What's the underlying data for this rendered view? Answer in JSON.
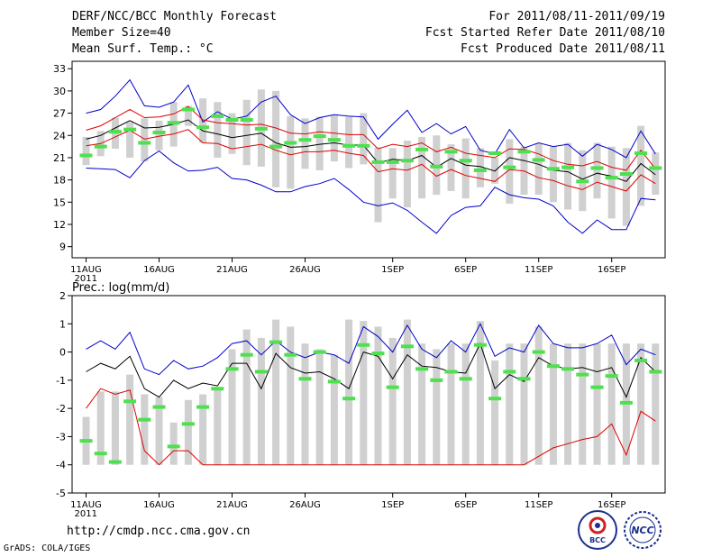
{
  "header": {
    "title": "DERF/NCC/BCC Monthly Forecast",
    "member_size": "Member Size=40",
    "variable": "Mean Surf. Temp.: °C",
    "period": "For 2011/08/11-2011/09/19",
    "started": "Fcst Started Refer Date 2011/08/10",
    "produced": "Fcst Produced Date 2011/08/11"
  },
  "footer": {
    "url": "http://cmdp.ncc.cma.gov.cn",
    "grads": "GrADS: COLA/IGES",
    "logo_bcc": "BCC",
    "logo_ncc": "NCC"
  },
  "colors": {
    "bar": "#d0d0d0",
    "median_mark": "#4ee04e",
    "mean_line": "#000000",
    "band_line": "#e00000",
    "extreme_line": "#0000cc"
  },
  "chart_data": [
    {
      "type": "bar",
      "title": "Mean Surf. Temp.: °C",
      "xlabel": "",
      "ylabel": "°C",
      "ylim": [
        7.5,
        34
      ],
      "yticks": [
        9,
        12,
        15,
        18,
        21,
        24,
        27,
        30,
        33
      ],
      "xticks": [
        {
          "day": 1,
          "label": "11AUG",
          "sub": "2011"
        },
        {
          "day": 6,
          "label": "16AUG"
        },
        {
          "day": 11,
          "label": "21AUG"
        },
        {
          "day": 16,
          "label": "26AUG"
        },
        {
          "day": 22,
          "label": "1SEP"
        },
        {
          "day": 27,
          "label": "6SEP"
        },
        {
          "day": 32,
          "label": "11SEP"
        },
        {
          "day": 37,
          "label": "16SEP"
        }
      ],
      "days": [
        1,
        2,
        3,
        4,
        5,
        6,
        7,
        8,
        9,
        10,
        11,
        12,
        13,
        14,
        15,
        16,
        17,
        18,
        19,
        20,
        21,
        22,
        23,
        24,
        25,
        26,
        27,
        28,
        29,
        30,
        31,
        32,
        33,
        34,
        35,
        36,
        37,
        38,
        39,
        40
      ],
      "bar_low": [
        20.0,
        21.2,
        22.2,
        21.0,
        20.5,
        22.0,
        22.5,
        25.3,
        23.0,
        21.0,
        21.5,
        20.0,
        19.8,
        17.0,
        16.8,
        19.5,
        19.3,
        20.5,
        19.6,
        20.1,
        12.3,
        15.5,
        14.3,
        15.5,
        16.0,
        16.5,
        15.5,
        17.0,
        17.5,
        14.8,
        16.0,
        16.0,
        15.0,
        14.0,
        13.8,
        15.5,
        12.8,
        11.8,
        14.5,
        16.0
      ],
      "bar_high": [
        23.8,
        24.6,
        26.4,
        25.8,
        26.3,
        26.0,
        28.5,
        28.0,
        29.0,
        28.5,
        27.0,
        28.8,
        30.2,
        30.0,
        26.6,
        26.3,
        26.5,
        26.7,
        26.5,
        27.0,
        22.4,
        22.3,
        23.3,
        23.8,
        24.0,
        22.8,
        23.6,
        22.3,
        21.0,
        23.5,
        22.5,
        22.9,
        22.5,
        23.0,
        22.0,
        23.0,
        22.5,
        22.3,
        25.3,
        21.7
      ],
      "median": [
        21.3,
        22.5,
        24.5,
        24.8,
        23.0,
        24.4,
        25.7,
        27.5,
        25.1,
        26.6,
        26.1,
        26.1,
        24.9,
        22.5,
        23.0,
        23.4,
        23.9,
        23.4,
        22.6,
        22.6,
        20.4,
        20.4,
        20.6,
        22.1,
        19.8,
        21.8,
        20.6,
        19.3,
        21.6,
        19.7,
        21.8,
        20.7,
        19.5,
        19.7,
        17.8,
        19.6,
        18.3,
        18.8,
        21.6,
        19.6
      ],
      "series": [
        {
          "name": "max",
          "color_key": "extreme_line",
          "values": [
            27.0,
            27.5,
            29.3,
            31.5,
            28.0,
            27.8,
            28.5,
            30.8,
            25.8,
            27.2,
            26.2,
            26.6,
            28.5,
            29.3,
            26.8,
            25.6,
            26.4,
            26.8,
            26.6,
            26.5,
            23.5,
            25.5,
            27.4,
            24.4,
            25.6,
            24.2,
            25.2,
            22.0,
            21.5,
            24.8,
            22.3,
            23.0,
            22.5,
            22.8,
            21.2,
            22.8,
            22.1,
            21.0,
            24.6,
            21.5
          ]
        },
        {
          "name": "upper",
          "color_key": "band_line",
          "values": [
            24.7,
            25.3,
            26.4,
            27.5,
            26.4,
            26.5,
            26.9,
            27.9,
            26.1,
            25.7,
            25.6,
            25.4,
            25.5,
            25.0,
            24.3,
            24.2,
            24.5,
            24.3,
            24.1,
            24.1,
            22.2,
            22.8,
            22.5,
            23.0,
            21.8,
            22.4,
            21.6,
            21.3,
            21.0,
            22.2,
            22.1,
            21.5,
            20.6,
            20.1,
            19.9,
            20.5,
            19.7,
            19.3,
            22.0,
            19.5
          ]
        },
        {
          "name": "mean",
          "color_key": "mean_line",
          "values": [
            23.5,
            24.0,
            25.0,
            26.0,
            25.0,
            25.1,
            25.5,
            26.1,
            24.6,
            24.2,
            23.7,
            24.0,
            24.3,
            23.0,
            22.4,
            22.5,
            22.8,
            23.0,
            22.7,
            22.7,
            20.3,
            20.8,
            20.6,
            21.3,
            19.7,
            20.9,
            20.0,
            19.8,
            19.2,
            21.0,
            20.6,
            20.1,
            19.3,
            19.1,
            18.1,
            18.9,
            18.5,
            17.8,
            20.2,
            18.7
          ]
        },
        {
          "name": "lower",
          "color_key": "band_line",
          "values": [
            22.6,
            22.9,
            23.8,
            24.7,
            23.5,
            23.9,
            24.2,
            24.8,
            23.0,
            22.9,
            22.2,
            22.5,
            22.8,
            22.0,
            21.4,
            21.8,
            21.8,
            22.0,
            21.6,
            21.3,
            19.1,
            19.5,
            19.3,
            20.1,
            18.5,
            19.4,
            18.6,
            18.2,
            17.8,
            19.4,
            19.2,
            18.3,
            17.9,
            17.2,
            16.7,
            17.7,
            17.1,
            16.5,
            18.7,
            17.5
          ]
        },
        {
          "name": "min",
          "color_key": "extreme_line",
          "values": [
            19.6,
            19.5,
            19.4,
            18.3,
            20.6,
            21.9,
            20.3,
            19.2,
            19.3,
            19.7,
            18.2,
            18.0,
            17.3,
            16.4,
            16.4,
            17.1,
            17.5,
            18.2,
            16.7,
            15.0,
            14.5,
            14.9,
            13.9,
            12.3,
            10.8,
            13.2,
            14.3,
            14.5,
            17.0,
            16.0,
            15.6,
            15.4,
            14.5,
            12.3,
            10.8,
            12.6,
            11.3,
            11.3,
            15.5,
            15.3
          ]
        }
      ]
    },
    {
      "type": "bar",
      "title": "Prec.: log(mm/d)",
      "xlabel": "",
      "ylabel": "log(mm/d)",
      "ylim": [
        -5,
        2
      ],
      "yticks": [
        -5,
        -4,
        -3,
        -2,
        -1,
        0,
        1,
        2
      ],
      "xticks": [
        {
          "day": 1,
          "label": "11AUG",
          "sub": "2011"
        },
        {
          "day": 6,
          "label": "16AUG"
        },
        {
          "day": 11,
          "label": "21AUG"
        },
        {
          "day": 16,
          "label": "26AUG"
        },
        {
          "day": 22,
          "label": "1SEP"
        },
        {
          "day": 27,
          "label": "6SEP"
        },
        {
          "day": 32,
          "label": "11SEP"
        },
        {
          "day": 37,
          "label": "16SEP"
        }
      ],
      "days": [
        1,
        2,
        3,
        4,
        5,
        6,
        7,
        8,
        9,
        10,
        11,
        12,
        13,
        14,
        15,
        16,
        17,
        18,
        19,
        20,
        21,
        22,
        23,
        24,
        25,
        26,
        27,
        28,
        29,
        30,
        31,
        32,
        33,
        34,
        35,
        36,
        37,
        38,
        39,
        40
      ],
      "bar_low": [
        -4,
        -4,
        -4,
        -4,
        -4,
        -4,
        -4,
        -4,
        -4,
        -4,
        -4,
        -4,
        -4,
        -4,
        -4,
        -4,
        -4,
        -4,
        -4,
        -4,
        -4,
        -4,
        -4,
        -4,
        -4,
        -4,
        -4,
        -4,
        -4,
        -4,
        -4,
        -4,
        -4,
        -4,
        -4,
        -4,
        -4,
        -4,
        -4,
        -4
      ],
      "bar_high": [
        -2.3,
        -1.4,
        -1.4,
        -0.8,
        -1.5,
        -1.6,
        -2.5,
        -1.7,
        -1.5,
        -1.3,
        0.1,
        0.8,
        0.5,
        1.15,
        0.9,
        0.3,
        0.1,
        -0.1,
        1.15,
        1.1,
        0.9,
        0.5,
        1.15,
        0.3,
        0.1,
        0.3,
        0.3,
        1.1,
        -0.3,
        0.3,
        0.3,
        0.9,
        0.3,
        0.3,
        0.3,
        0.3,
        0.3,
        0.3,
        0.3,
        0.3
      ],
      "median": [
        -3.15,
        -3.6,
        -3.9,
        -1.75,
        -2.4,
        -1.95,
        -3.35,
        -2.55,
        -1.95,
        -1.3,
        -0.6,
        -0.1,
        -0.7,
        0.35,
        -0.1,
        -0.95,
        0.0,
        -1.05,
        -1.65,
        0.25,
        -0.05,
        -1.25,
        0.2,
        -0.6,
        -1.0,
        -0.7,
        -0.95,
        0.25,
        -1.65,
        -0.7,
        -0.95,
        0.0,
        -0.5,
        -0.6,
        -0.8,
        -1.25,
        -0.85,
        -1.8,
        -0.3,
        -0.7
      ],
      "series": [
        {
          "name": "max",
          "color_key": "extreme_line",
          "values": [
            0.1,
            0.4,
            0.1,
            0.7,
            -0.6,
            -0.8,
            -0.3,
            -0.6,
            -0.5,
            -0.2,
            0.3,
            0.4,
            -0.1,
            0.4,
            0.0,
            -0.2,
            0.0,
            -0.1,
            -0.4,
            0.9,
            0.55,
            0.0,
            0.95,
            0.1,
            -0.2,
            0.4,
            0.0,
            1.0,
            -0.15,
            0.15,
            0.0,
            0.95,
            0.3,
            0.15,
            0.15,
            0.3,
            0.6,
            -0.45,
            0.1,
            -0.1
          ]
        },
        {
          "name": "mean",
          "color_key": "mean_line",
          "values": [
            -0.7,
            -0.4,
            -0.6,
            -0.15,
            -1.3,
            -1.6,
            -1.0,
            -1.3,
            -1.1,
            -1.2,
            -0.4,
            -0.4,
            -1.3,
            -0.05,
            -0.55,
            -0.75,
            -0.7,
            -0.95,
            -1.3,
            0.0,
            -0.15,
            -0.95,
            -0.1,
            -0.5,
            -0.55,
            -0.7,
            -0.75,
            0.3,
            -1.3,
            -0.8,
            -1.05,
            -0.2,
            -0.5,
            -0.6,
            -0.55,
            -0.7,
            -0.55,
            -1.6,
            -0.2,
            -0.7
          ]
        },
        {
          "name": "min",
          "color_key": "band_line",
          "values": [
            -2.0,
            -1.3,
            -1.5,
            -1.35,
            -3.5,
            -4.0,
            -3.5,
            -3.5,
            -4.0,
            -4.0,
            -4.0,
            -4.0,
            -4.0,
            -4.0,
            -4.0,
            -4.0,
            -4.0,
            -4.0,
            -4.0,
            -4.0,
            -4.0,
            -4.0,
            -4.0,
            -4.0,
            -4.0,
            -4.0,
            -4.0,
            -4.0,
            -4.0,
            -4.0,
            -4.0,
            -3.7,
            -3.4,
            -3.25,
            -3.1,
            -3.0,
            -2.55,
            -3.65,
            -2.1,
            -2.45
          ]
        }
      ]
    }
  ]
}
